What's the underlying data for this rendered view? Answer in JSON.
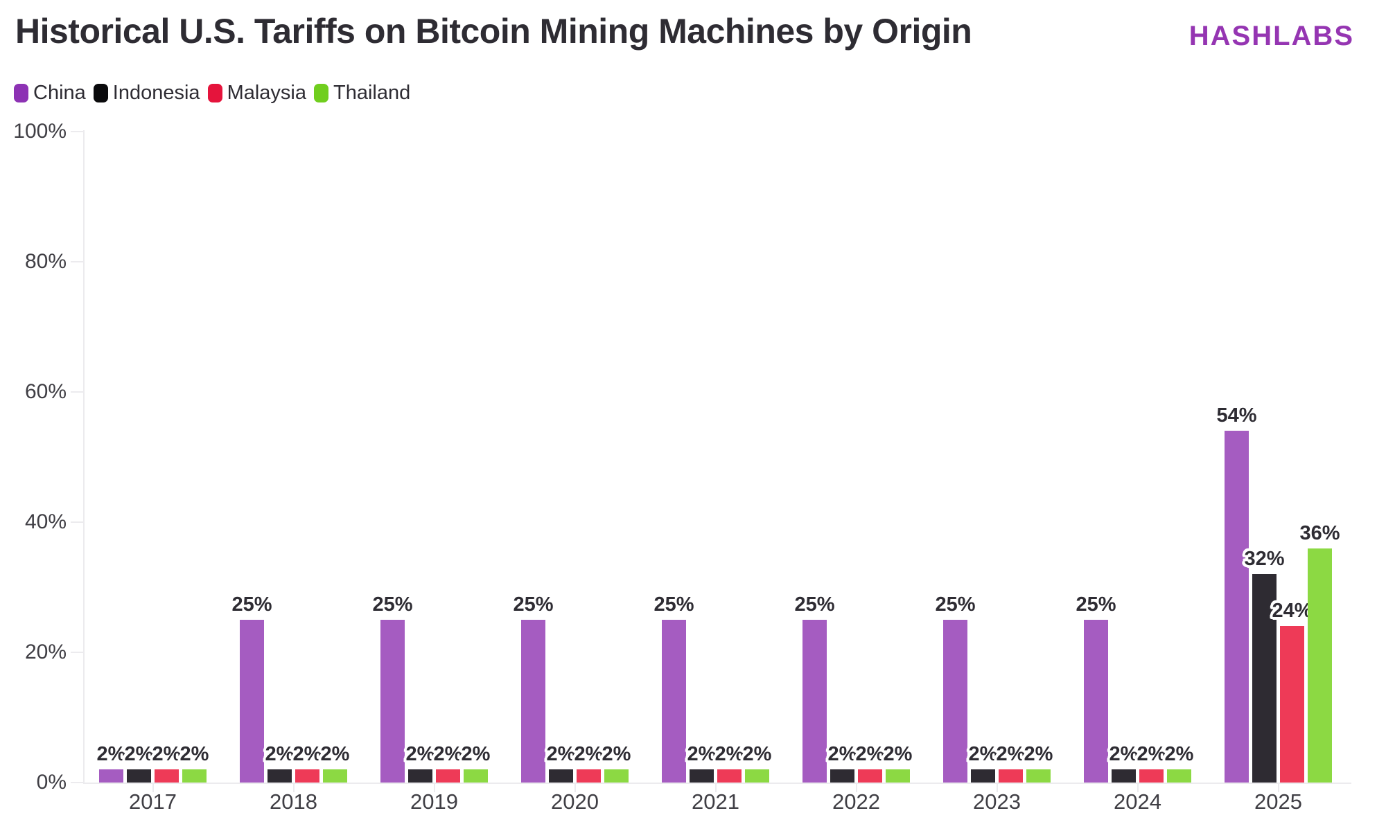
{
  "header": {
    "title": "Historical U.S. Tariffs on Bitcoin Mining Machines by Origin",
    "brand": "HASHLABS",
    "brand_color": "#9535b2"
  },
  "chart_data": {
    "type": "bar",
    "title": "Historical U.S. Tariffs on Bitcoin Mining Machines by Origin",
    "categories": [
      "2017",
      "2018",
      "2019",
      "2020",
      "2021",
      "2022",
      "2023",
      "2024",
      "2025"
    ],
    "series": [
      {
        "name": "China",
        "legend_color": "#8d32b4",
        "bar_color": "#a55cc1",
        "values": [
          2,
          25,
          25,
          25,
          25,
          25,
          25,
          25,
          54
        ]
      },
      {
        "name": "Indonesia",
        "legend_color": "#0a0a0c",
        "bar_color": "#2e2b32",
        "values": [
          2,
          2,
          2,
          2,
          2,
          2,
          2,
          2,
          32
        ]
      },
      {
        "name": "Malaysia",
        "legend_color": "#e5143c",
        "bar_color": "#ee3a57",
        "values": [
          2,
          2,
          2,
          2,
          2,
          2,
          2,
          2,
          24
        ]
      },
      {
        "name": "Thailand",
        "legend_color": "#70ce1e",
        "bar_color": "#8cd943",
        "values": [
          2,
          2,
          2,
          2,
          2,
          2,
          2,
          2,
          36
        ]
      }
    ],
    "xlabel": "",
    "ylabel": "",
    "ylim": [
      0,
      100
    ],
    "ytick_values": [
      0,
      20,
      40,
      60,
      80,
      100
    ],
    "ytick_labels": [
      "0%",
      "20%",
      "40%",
      "60%",
      "80%",
      "100%"
    ],
    "value_suffix": "%",
    "value_labels_shown": true,
    "grid": false,
    "legend_position": "top-left",
    "background": "#ffffff"
  },
  "colors": {
    "axis_line": "#ecebee",
    "tick_label": "#3f3e44",
    "value_label": "#2e2c33",
    "title": "#2e2c33"
  }
}
